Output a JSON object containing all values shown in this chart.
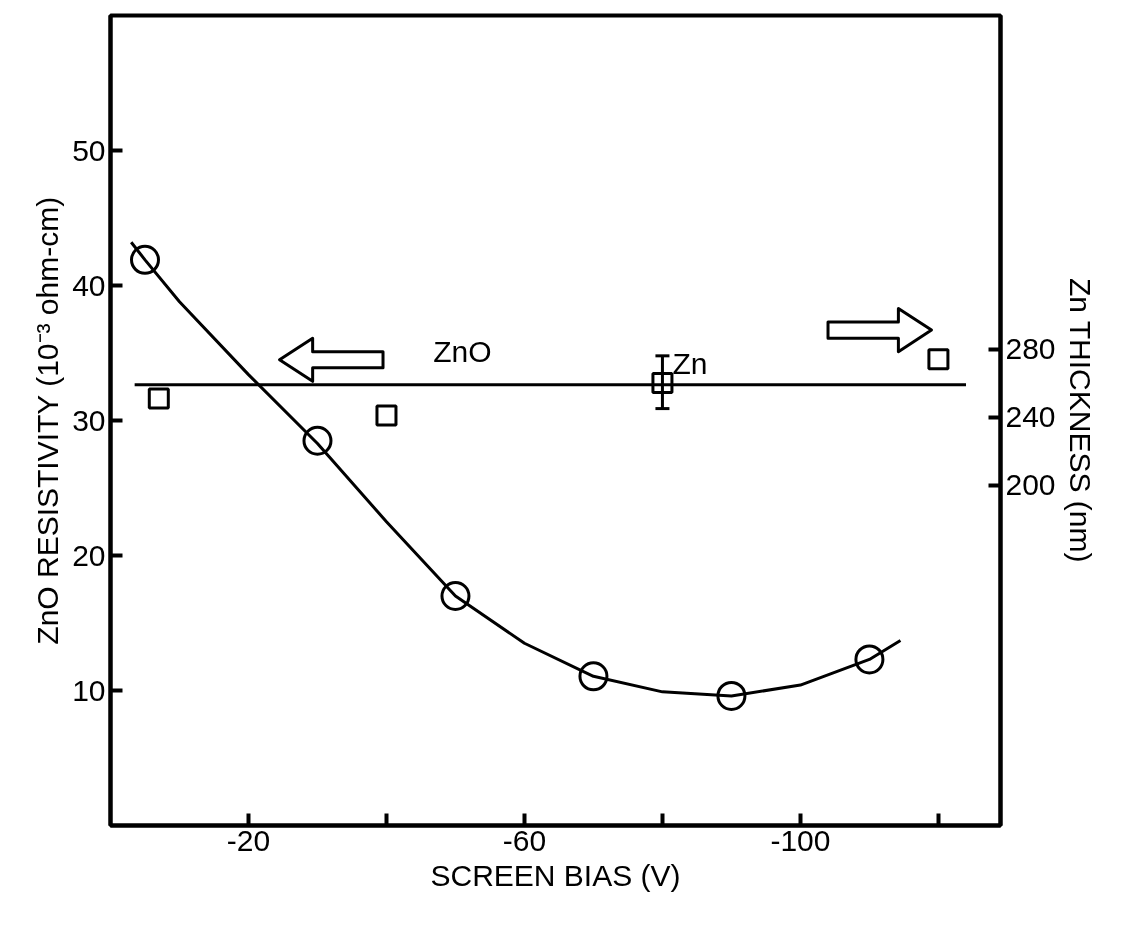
{
  "chart_data": {
    "type": "scatter",
    "xlabel": "SCREEN BIAS (V)",
    "ylabel": "ZnO RESISTIVITY (10⁻³ ohm-cm)",
    "y2label": "Zn THICKNESS (nm)",
    "xlim": [
      0,
      -129
    ],
    "xticks": [
      -20,
      {
        "value": -40,
        "label": null
      },
      -60,
      {
        "value": -80,
        "label": null
      },
      -100,
      {
        "value": -120,
        "label": null
      }
    ],
    "ylim": [
      0,
      60
    ],
    "yticks": [
      10,
      20,
      30,
      40,
      50
    ],
    "y2lim": [
      0,
      476
    ],
    "y2ticks": [
      200,
      240,
      280
    ],
    "grid": false,
    "series": [
      {
        "marker": "circle",
        "color": "#000000",
        "x": [
          -5,
          -30,
          -50,
          -70,
          -90,
          -110
        ],
        "values": [
          41.9,
          28.5,
          17.0,
          11.05,
          9.6,
          12.3
        ]
      },
      {
        "type": "line",
        "line_style": "solid",
        "color": "#000000",
        "x": [
          -3,
          -5,
          -10,
          -20,
          -30,
          -40,
          -50,
          -60,
          -70,
          -80,
          -90,
          -100,
          -110,
          -114.5
        ],
        "values": [
          43.2,
          41.9,
          38.8,
          33.4,
          28.3,
          22.5,
          17.0,
          13.5,
          11.05,
          9.9,
          9.6,
          10.4,
          12.3,
          13.7
        ]
      },
      {
        "marker": "square",
        "color": "#000000",
        "axis": "y2",
        "x": [
          -7,
          -40,
          -80,
          -120
        ],
        "values": [
          251,
          241,
          260,
          274
        ],
        "errors": [
          null,
          null,
          [
            245,
            276
          ],
          null
        ]
      },
      {
        "type": "line",
        "line_style": "solid",
        "color": "#000000",
        "axis": "y2",
        "x": [
          -3.5,
          -124
        ],
        "values": [
          259,
          259
        ]
      }
    ],
    "annotations": [
      "ZnO",
      "Zn"
    ]
  }
}
